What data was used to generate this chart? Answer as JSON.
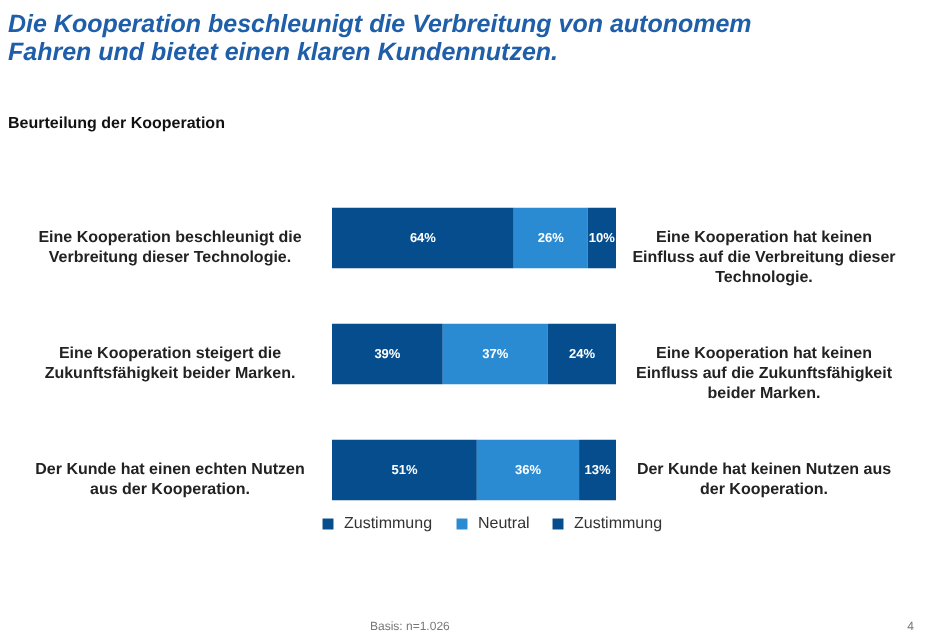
{
  "chart_data": {
    "type": "bar",
    "orientation": "horizontal",
    "stacked": true,
    "title": "Die Kooperation beschleunigt die Verbreitung von autonomem\nFahren und bietet einen klaren Kundennutzen.",
    "subtitle": "Beurteilung der Kooperation",
    "categories": [
      "Eine Kooperation beschleunigt die\nVerbreitung dieser Technologie.",
      "Eine Kooperation steigert die\nZukunftsfähigkeit beider Marken.",
      "Der Kunde hat einen echten Nutzen\naus der Kooperation."
    ],
    "series": [
      {
        "name": "Zustimmung",
        "color": "#064d8e",
        "values": [
          64,
          39,
          51
        ],
        "value_labels": [
          "64%",
          "39%",
          "51%"
        ]
      },
      {
        "name": "Neutral",
        "color": "#2a8ad2",
        "values": [
          26,
          37,
          36
        ],
        "value_labels": [
          "26%",
          "37%",
          "36%"
        ]
      },
      {
        "name": "Zustimmung",
        "color": "#064d8e",
        "values": [
          10,
          24,
          13
        ],
        "value_labels": [
          "10%",
          "24%",
          "13%"
        ]
      }
    ],
    "annotations": [
      "Eine Kooperation hat keinen\nEinfluss auf die Verbreitung dieser\nTechnologie.",
      "Eine Kooperation hat keinen\nEinfluss auf die Zukunftsfähigkeit\nbeider Marken.",
      "Der Kunde hat keinen Nutzen aus\nder Kooperation.",
      "Basis: n=1.026",
      "4"
    ],
    "legend": "bottom"
  }
}
